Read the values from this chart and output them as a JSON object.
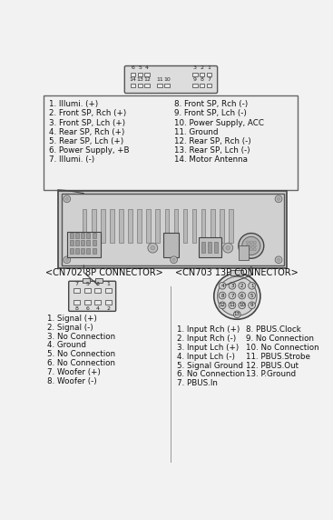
{
  "bg_color": "#f2f2f2",
  "left_labels": [
    "1. Illumi. (+)",
    "2. Front SP, Rch (+)",
    "3. Front SP, Lch (+)",
    "4. Rear SP, Rch (+)",
    "5. Rear SP, Lch (+)",
    "6. Power Supply, +B",
    "7. Illumi. (-)"
  ],
  "right_labels": [
    "8. Front SP, Rch (-)",
    "9. Front SP, Lch (-)",
    "10. Power Supply, ACC",
    "11. Ground",
    "12. Rear SP, Rch (-)",
    "13. Rear SP, Lch (-)",
    "14. Motor Antenna"
  ],
  "cn702_title": "<CN702 8P CONNECTOR>",
  "cn702_labels": [
    "1. Signal (+)",
    "2. Signal (-)",
    "3. No Connection",
    "4. Ground",
    "5. No Connection",
    "6. No Connection",
    "7. Woofer (+)",
    "8. Woofer (-)"
  ],
  "cn702_row1": [
    "7",
    "5",
    "3",
    "1"
  ],
  "cn702_row2": [
    "8",
    "6",
    "4",
    "2"
  ],
  "cn703_title": "<CN703 13P CONNECTOR>",
  "cn703_left_labels": [
    "1. Input Rch (+)",
    "2. Input Rch (-)",
    "3. Input Lch (+)",
    "4. Input Lch (-)",
    "5. Signal Ground",
    "6. No Connection",
    "7. PBUS.In"
  ],
  "cn703_right_labels": [
    "8. PBUS.Clock",
    "9. No Connection",
    "10. No Connection",
    "11. PBUS.Strobe",
    "12. PBUS.Out",
    "13. P.Ground"
  ]
}
